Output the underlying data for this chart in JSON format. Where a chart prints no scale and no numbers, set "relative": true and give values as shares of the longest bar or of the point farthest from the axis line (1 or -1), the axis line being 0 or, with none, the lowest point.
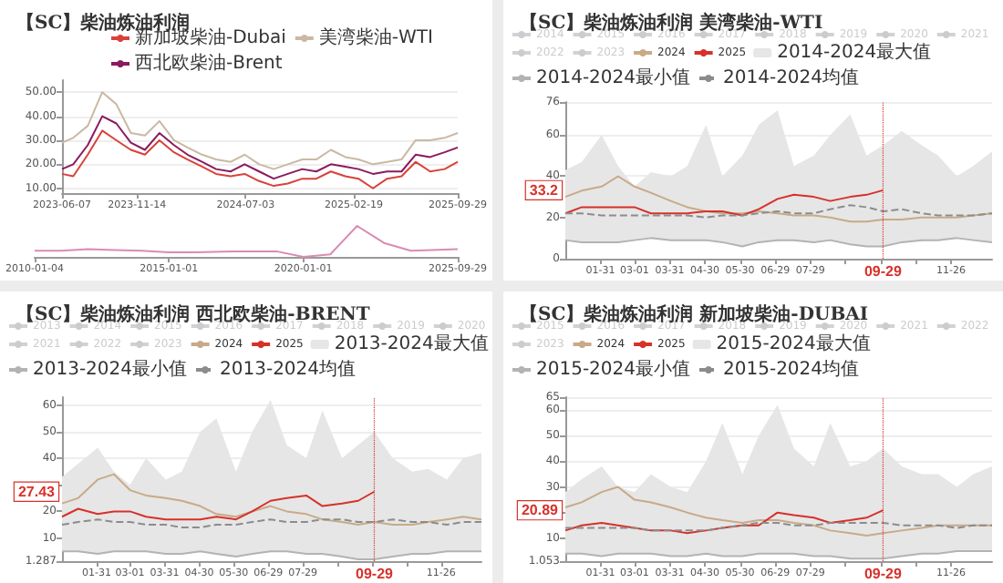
{
  "chart_data": [
    {
      "type": "line",
      "title": "【SC】柴油炼油利润",
      "legend": "top right",
      "grid": "y",
      "marker": "none",
      "x": [
        "2023-06-07",
        "2023-07-01",
        "2023-08-01",
        "2023-09-01",
        "2023-10-01",
        "2023-11-01",
        "2023-12-01",
        "2024-01-01",
        "2024-02-01",
        "2024-03-01",
        "2024-04-01",
        "2024-05-01",
        "2024-06-01",
        "2024-07-01",
        "2024-08-01",
        "2024-09-01",
        "2024-10-01",
        "2024-11-01",
        "2024-12-01",
        "2025-01-01",
        "2025-02-01",
        "2025-03-01",
        "2025-04-01",
        "2025-05-01",
        "2025-06-01",
        "2025-07-01",
        "2025-08-01",
        "2025-09-01",
        "2025-09-29"
      ],
      "xlim": [
        "2023-06-07",
        "2025-09-29"
      ],
      "xticks": [
        "2023-06-07",
        "2023-11-14",
        "2024-07-03",
        "2025-02-19",
        "2025-09-29"
      ],
      "ylim": [
        8,
        55
      ],
      "yticks": [
        {
          "value": 10,
          "label": "10.00"
        },
        {
          "value": 20,
          "label": "20.00"
        },
        {
          "value": 30,
          "label": "30.00"
        },
        {
          "value": 40,
          "label": "40.00"
        },
        {
          "value": 50,
          "label": "50.00"
        }
      ],
      "series": [
        {
          "name": "新加坡柴油-Dubai",
          "color": "#d9413b",
          "values": [
            16,
            15,
            24,
            34,
            30,
            26,
            24,
            30,
            25,
            22,
            19,
            16,
            15,
            16,
            13,
            11,
            12,
            14,
            14,
            17,
            15,
            14,
            10,
            14,
            15,
            21,
            17,
            18,
            21
          ]
        },
        {
          "name": "美湾柴油-WTI",
          "color": "#c9b9a3",
          "values": [
            29,
            31,
            36,
            50,
            45,
            33,
            32,
            38,
            30,
            27,
            24,
            22,
            21,
            24,
            20,
            18,
            20,
            22,
            22,
            26,
            23,
            22,
            20,
            21,
            22,
            30,
            30,
            31,
            33
          ]
        },
        {
          "name": "西北欧柴油-Brent",
          "color": "#8b1a5e",
          "values": [
            18,
            20,
            28,
            40,
            37,
            29,
            26,
            33,
            28,
            24,
            21,
            18,
            17,
            20,
            17,
            14,
            16,
            18,
            17,
            20,
            19,
            18,
            16,
            17,
            17,
            24,
            23,
            25,
            27
          ]
        }
      ]
    },
    {
      "type": "line",
      "relative": true,
      "tick_labels": "x",
      "marker": "none",
      "color": "#d98cb3",
      "x": [
        "2010-01-04",
        "2011-01-01",
        "2012-01-01",
        "2013-01-01",
        "2014-01-01",
        "2015-01-01",
        "2016-01-01",
        "2017-01-01",
        "2018-01-01",
        "2019-01-01",
        "2020-01-01",
        "2021-01-01",
        "2022-01-01",
        "2023-01-01",
        "2024-01-01",
        "2025-09-29"
      ],
      "xlim": [
        "2010-01-04",
        "2025-09-29"
      ],
      "xticks": [
        "2010-01-04",
        "2015-01-01",
        "2020-01-01",
        "2025-09-29"
      ],
      "values": [
        0.2,
        0.2,
        0.25,
        0.22,
        0.2,
        0.15,
        0.15,
        0.17,
        0.18,
        0.18,
        0,
        0.08,
        1,
        0.45,
        0.2,
        0.25
      ]
    },
    {
      "type": "line",
      "title": "【SC】柴油炼油利润 美湾柴油-WTI",
      "legend": "top",
      "grid": "y",
      "marker": "none",
      "x": [
        "--01-01",
        "--01-15",
        "--02-01",
        "--02-15",
        "--03-01",
        "--03-15",
        "--04-01",
        "--04-15",
        "--05-01",
        "--05-15",
        "--06-01",
        "--06-15",
        "--07-01",
        "--07-15",
        "--08-01",
        "--08-15",
        "--09-01",
        "--09-15",
        "--09-29",
        "--10-15",
        "--11-01",
        "--11-15",
        "--12-01",
        "--12-15",
        "--12-31"
      ],
      "xlim": [
        "--01-01",
        "--12-31"
      ],
      "xticks": [
        {
          "value": "--01-31",
          "label": "01-31"
        },
        {
          "value": "--03-01",
          "label": "03-01"
        },
        {
          "value": "--03-31",
          "label": "03-31"
        },
        {
          "value": "--04-30",
          "label": "04-30"
        },
        {
          "value": "--05-30",
          "label": "05-30"
        },
        {
          "value": "--06-29",
          "label": "06-29"
        },
        {
          "value": "--07-29",
          "label": "07-29"
        },
        {
          "value": "--08-28",
          "label": null
        },
        {
          "value": "--09-27",
          "label": null
        },
        {
          "value": "--10-27",
          "label": null
        },
        {
          "value": "--11-26",
          "label": "11-26"
        }
      ],
      "ylim": [
        0,
        76
      ],
      "yticks": [
        0,
        20,
        40,
        60,
        76
      ],
      "annotations": [
        {
          "text": "33.2",
          "y": 33.2
        }
      ],
      "ref_lines": [
        {
          "axis": "x",
          "value": "--09-29",
          "label": "09-29",
          "color": "#d7312a",
          "line_style": "dotted"
        }
      ],
      "series": [
        {
          "name": "2014",
          "color": "#cccccc",
          "values": [
            null,
            null,
            null,
            null,
            null,
            null,
            null,
            null,
            null,
            null,
            null,
            null,
            null,
            null,
            null,
            null,
            null,
            null,
            null,
            null,
            null,
            null,
            null,
            null,
            null
          ]
        },
        {
          "name": "2015",
          "color": "#cccccc",
          "values": [
            null,
            null,
            null,
            null,
            null,
            null,
            null,
            null,
            null,
            null,
            null,
            null,
            null,
            null,
            null,
            null,
            null,
            null,
            null,
            null,
            null,
            null,
            null,
            null,
            null
          ]
        },
        {
          "name": "2016",
          "color": "#cccccc",
          "values": [
            null,
            null,
            null,
            null,
            null,
            null,
            null,
            null,
            null,
            null,
            null,
            null,
            null,
            null,
            null,
            null,
            null,
            null,
            null,
            null,
            null,
            null,
            null,
            null,
            null
          ]
        },
        {
          "name": "2017",
          "color": "#cccccc",
          "values": [
            null,
            null,
            null,
            null,
            null,
            null,
            null,
            null,
            null,
            null,
            null,
            null,
            null,
            null,
            null,
            null,
            null,
            null,
            null,
            null,
            null,
            null,
            null,
            null,
            null
          ]
        },
        {
          "name": "2018",
          "color": "#cccccc",
          "values": [
            null,
            null,
            null,
            null,
            null,
            null,
            null,
            null,
            null,
            null,
            null,
            null,
            null,
            null,
            null,
            null,
            null,
            null,
            null,
            null,
            null,
            null,
            null,
            null,
            null
          ]
        },
        {
          "name": "2019",
          "color": "#cccccc",
          "values": [
            null,
            null,
            null,
            null,
            null,
            null,
            null,
            null,
            null,
            null,
            null,
            null,
            null,
            null,
            null,
            null,
            null,
            null,
            null,
            null,
            null,
            null,
            null,
            null,
            null
          ]
        },
        {
          "name": "2020",
          "color": "#cccccc",
          "values": [
            null,
            null,
            null,
            null,
            null,
            null,
            null,
            null,
            null,
            null,
            null,
            null,
            null,
            null,
            null,
            null,
            null,
            null,
            null,
            null,
            null,
            null,
            null,
            null,
            null
          ]
        },
        {
          "name": "2021",
          "color": "#cccccc",
          "values": [
            null,
            null,
            null,
            null,
            null,
            null,
            null,
            null,
            null,
            null,
            null,
            null,
            null,
            null,
            null,
            null,
            null,
            null,
            null,
            null,
            null,
            null,
            null,
            null,
            null
          ]
        },
        {
          "name": "2022",
          "color": "#cccccc",
          "values": [
            null,
            null,
            null,
            null,
            null,
            null,
            null,
            null,
            null,
            null,
            null,
            null,
            null,
            null,
            null,
            null,
            null,
            null,
            null,
            null,
            null,
            null,
            null,
            null,
            null
          ]
        },
        {
          "name": "2023",
          "color": "#cccccc",
          "values": [
            null,
            null,
            null,
            null,
            null,
            null,
            null,
            null,
            null,
            null,
            null,
            null,
            null,
            null,
            null,
            null,
            null,
            null,
            null,
            null,
            null,
            null,
            null,
            null,
            null
          ]
        },
        {
          "name": "2024",
          "color": "#c8aa88",
          "values": [
            30,
            33,
            35,
            40,
            35,
            32,
            28,
            25,
            23,
            22,
            22,
            23,
            22,
            21,
            21,
            20,
            18,
            18,
            19,
            19,
            20,
            20,
            20,
            21,
            22
          ]
        },
        {
          "name": "2025",
          "color": "#d7312a",
          "values": [
            22,
            25,
            25,
            25,
            25,
            22,
            22,
            22,
            23,
            23,
            21,
            24,
            29,
            31,
            30,
            28,
            30,
            31,
            33.2,
            null,
            null,
            null,
            null,
            null,
            null
          ]
        },
        {
          "name": "2014-2024最大值",
          "type": "area",
          "color": "#e6e6e6",
          "values": [
            43,
            47,
            60,
            45,
            35,
            42,
            40,
            45,
            65,
            40,
            50,
            65,
            72,
            45,
            50,
            60,
            70,
            50,
            55,
            62,
            55,
            50,
            40,
            45,
            52
          ]
        },
        {
          "name": "2014-2024最小值",
          "color": "#b3b3b3",
          "values": [
            9,
            8,
            8,
            8,
            9,
            10,
            9,
            9,
            9,
            8,
            6,
            8,
            9,
            9,
            8,
            9,
            7,
            6,
            6,
            8,
            9,
            9,
            10,
            9,
            8
          ]
        },
        {
          "name": "2014-2024均值",
          "color": "#8c8c8c",
          "line_style": "dashed",
          "values": [
            22,
            22,
            21,
            21,
            21,
            21,
            21,
            21,
            20,
            21,
            21,
            22,
            23,
            22,
            22,
            24,
            26,
            25,
            23,
            24,
            22,
            21,
            21,
            21,
            22
          ]
        }
      ]
    },
    {
      "type": "line",
      "title": "【SC】柴油炼油利润 西北欧柴油-BRENT",
      "legend": "top",
      "grid": "y",
      "marker": "none",
      "x": [
        "--01-01",
        "--01-15",
        "--02-01",
        "--02-15",
        "--03-01",
        "--03-15",
        "--04-01",
        "--04-15",
        "--05-01",
        "--05-15",
        "--06-01",
        "--06-15",
        "--07-01",
        "--07-15",
        "--08-01",
        "--08-15",
        "--09-01",
        "--09-15",
        "--09-29",
        "--10-15",
        "--11-01",
        "--11-15",
        "--12-01",
        "--12-15",
        "--12-31"
      ],
      "xlim": [
        "--01-01",
        "--12-31"
      ],
      "xticks": [
        {
          "value": "--01-31",
          "label": "01-31"
        },
        {
          "value": "--03-01",
          "label": "03-01"
        },
        {
          "value": "--03-31",
          "label": "03-31"
        },
        {
          "value": "--04-30",
          "label": "04-30"
        },
        {
          "value": "--05-30",
          "label": "05-30"
        },
        {
          "value": "--06-29",
          "label": "06-29"
        },
        {
          "value": "--07-29",
          "label": "07-29"
        },
        {
          "value": "--08-28",
          "label": null
        },
        {
          "value": "--09-27",
          "label": null
        },
        {
          "value": "--10-27",
          "label": null
        },
        {
          "value": "--11-26",
          "label": "11-26"
        }
      ],
      "ylim": [
        1.287,
        63
      ],
      "yticks": [
        1.287,
        10,
        20,
        {
          "value": 30,
          "label": null
        },
        40,
        50,
        60
      ],
      "annotations": [
        {
          "text": "27.43",
          "y": 27.43
        }
      ],
      "ref_lines": [
        {
          "axis": "x",
          "value": "--09-29",
          "label": "09-29",
          "color": "#d7312a",
          "line_style": "dotted"
        }
      ],
      "series": [
        {
          "name": "2013",
          "color": "#cccccc",
          "values": [
            null,
            null,
            null,
            null,
            null,
            null,
            null,
            null,
            null,
            null,
            null,
            null,
            null,
            null,
            null,
            null,
            null,
            null,
            null,
            null,
            null,
            null,
            null,
            null,
            null
          ]
        },
        {
          "name": "2014",
          "color": "#cccccc",
          "values": [
            null,
            null,
            null,
            null,
            null,
            null,
            null,
            null,
            null,
            null,
            null,
            null,
            null,
            null,
            null,
            null,
            null,
            null,
            null,
            null,
            null,
            null,
            null,
            null,
            null
          ]
        },
        {
          "name": "2015",
          "color": "#cccccc",
          "values": [
            null,
            null,
            null,
            null,
            null,
            null,
            null,
            null,
            null,
            null,
            null,
            null,
            null,
            null,
            null,
            null,
            null,
            null,
            null,
            null,
            null,
            null,
            null,
            null,
            null
          ]
        },
        {
          "name": "2016",
          "color": "#cccccc",
          "values": [
            null,
            null,
            null,
            null,
            null,
            null,
            null,
            null,
            null,
            null,
            null,
            null,
            null,
            null,
            null,
            null,
            null,
            null,
            null,
            null,
            null,
            null,
            null,
            null,
            null
          ]
        },
        {
          "name": "2017",
          "color": "#cccccc",
          "values": [
            null,
            null,
            null,
            null,
            null,
            null,
            null,
            null,
            null,
            null,
            null,
            null,
            null,
            null,
            null,
            null,
            null,
            null,
            null,
            null,
            null,
            null,
            null,
            null,
            null
          ]
        },
        {
          "name": "2018",
          "color": "#cccccc",
          "values": [
            null,
            null,
            null,
            null,
            null,
            null,
            null,
            null,
            null,
            null,
            null,
            null,
            null,
            null,
            null,
            null,
            null,
            null,
            null,
            null,
            null,
            null,
            null,
            null,
            null
          ]
        },
        {
          "name": "2019",
          "color": "#cccccc",
          "values": [
            null,
            null,
            null,
            null,
            null,
            null,
            null,
            null,
            null,
            null,
            null,
            null,
            null,
            null,
            null,
            null,
            null,
            null,
            null,
            null,
            null,
            null,
            null,
            null,
            null
          ]
        },
        {
          "name": "2020",
          "color": "#cccccc",
          "values": [
            null,
            null,
            null,
            null,
            null,
            null,
            null,
            null,
            null,
            null,
            null,
            null,
            null,
            null,
            null,
            null,
            null,
            null,
            null,
            null,
            null,
            null,
            null,
            null,
            null
          ]
        },
        {
          "name": "2021",
          "color": "#cccccc",
          "values": [
            null,
            null,
            null,
            null,
            null,
            null,
            null,
            null,
            null,
            null,
            null,
            null,
            null,
            null,
            null,
            null,
            null,
            null,
            null,
            null,
            null,
            null,
            null,
            null,
            null
          ]
        },
        {
          "name": "2022",
          "color": "#cccccc",
          "values": [
            null,
            null,
            null,
            null,
            null,
            null,
            null,
            null,
            null,
            null,
            null,
            null,
            null,
            null,
            null,
            null,
            null,
            null,
            null,
            null,
            null,
            null,
            null,
            null,
            null
          ]
        },
        {
          "name": "2023",
          "color": "#cccccc",
          "values": [
            null,
            null,
            null,
            null,
            null,
            null,
            null,
            null,
            null,
            null,
            null,
            null,
            null,
            null,
            null,
            null,
            null,
            null,
            null,
            null,
            null,
            null,
            null,
            null,
            null
          ]
        },
        {
          "name": "2024",
          "color": "#c8aa88",
          "values": [
            23,
            25,
            32,
            34,
            28,
            26,
            25,
            24,
            22,
            19,
            18,
            20,
            22,
            20,
            19,
            17,
            16,
            15,
            16,
            15,
            15,
            16,
            17,
            18,
            17
          ]
        },
        {
          "name": "2025",
          "color": "#d7312a",
          "values": [
            18,
            21,
            19,
            20,
            20,
            18,
            17,
            17,
            17,
            18,
            17,
            20,
            24,
            25,
            26,
            22,
            23,
            24,
            27.43,
            null,
            null,
            null,
            null,
            null,
            null
          ]
        },
        {
          "name": "2013-2024最大值",
          "type": "area",
          "color": "#e6e6e6",
          "values": [
            33,
            38,
            44,
            35,
            30,
            40,
            32,
            35,
            50,
            55,
            35,
            50,
            62,
            45,
            40,
            58,
            40,
            45,
            50,
            40,
            35,
            36,
            32,
            40,
            42
          ]
        },
        {
          "name": "2013-2024最小值",
          "color": "#b3b3b3",
          "values": [
            5,
            5,
            4,
            5,
            5,
            5,
            4,
            4,
            5,
            4,
            3,
            4,
            5,
            5,
            4,
            4,
            3,
            2,
            2,
            3,
            4,
            4,
            5,
            5,
            5
          ]
        },
        {
          "name": "2013-2024均值",
          "color": "#8c8c8c",
          "line_style": "dashed",
          "values": [
            15,
            16,
            17,
            16,
            16,
            15,
            15,
            14,
            14,
            15,
            15,
            16,
            17,
            16,
            16,
            17,
            17,
            16,
            16,
            17,
            16,
            16,
            15,
            16,
            16
          ]
        }
      ]
    },
    {
      "type": "line",
      "title": "【SC】柴油炼油利润 新加坡柴油-DUBAI",
      "legend": "top",
      "grid": "y",
      "marker": "none",
      "x": [
        "--01-01",
        "--01-15",
        "--02-01",
        "--02-15",
        "--03-01",
        "--03-15",
        "--04-01",
        "--04-15",
        "--05-01",
        "--05-15",
        "--06-01",
        "--06-15",
        "--07-01",
        "--07-15",
        "--08-01",
        "--08-15",
        "--09-01",
        "--09-15",
        "--09-29",
        "--10-15",
        "--11-01",
        "--11-15",
        "--12-01",
        "--12-15",
        "--12-31"
      ],
      "xlim": [
        "--01-01",
        "--12-31"
      ],
      "xticks": [
        {
          "value": "--01-31",
          "label": "01-31"
        },
        {
          "value": "--03-01",
          "label": "03-01"
        },
        {
          "value": "--03-31",
          "label": "03-31"
        },
        {
          "value": "--04-30",
          "label": "04-30"
        },
        {
          "value": "--05-30",
          "label": "05-30"
        },
        {
          "value": "--06-29",
          "label": "06-29"
        },
        {
          "value": "--07-29",
          "label": "07-29"
        },
        {
          "value": "--08-28",
          "label": null
        },
        {
          "value": "--09-27",
          "label": null
        },
        {
          "value": "--10-27",
          "label": null
        },
        {
          "value": "--11-26",
          "label": "11-26"
        }
      ],
      "ylim": [
        1.053,
        65
      ],
      "yticks": [
        1.053,
        10,
        {
          "value": 20,
          "label": null
        },
        30,
        40,
        50,
        60,
        65
      ],
      "annotations": [
        {
          "text": "20.89",
          "y": 20.89
        }
      ],
      "ref_lines": [
        {
          "axis": "x",
          "value": "--09-29",
          "label": "09-29",
          "color": "#d7312a",
          "line_style": "dotted"
        }
      ],
      "series": [
        {
          "name": "2015",
          "color": "#cccccc",
          "values": [
            null,
            null,
            null,
            null,
            null,
            null,
            null,
            null,
            null,
            null,
            null,
            null,
            null,
            null,
            null,
            null,
            null,
            null,
            null,
            null,
            null,
            null,
            null,
            null,
            null
          ]
        },
        {
          "name": "2016",
          "color": "#cccccc",
          "values": [
            null,
            null,
            null,
            null,
            null,
            null,
            null,
            null,
            null,
            null,
            null,
            null,
            null,
            null,
            null,
            null,
            null,
            null,
            null,
            null,
            null,
            null,
            null,
            null,
            null
          ]
        },
        {
          "name": "2017",
          "color": "#cccccc",
          "values": [
            null,
            null,
            null,
            null,
            null,
            null,
            null,
            null,
            null,
            null,
            null,
            null,
            null,
            null,
            null,
            null,
            null,
            null,
            null,
            null,
            null,
            null,
            null,
            null,
            null
          ]
        },
        {
          "name": "2018",
          "color": "#cccccc",
          "values": [
            null,
            null,
            null,
            null,
            null,
            null,
            null,
            null,
            null,
            null,
            null,
            null,
            null,
            null,
            null,
            null,
            null,
            null,
            null,
            null,
            null,
            null,
            null,
            null,
            null
          ]
        },
        {
          "name": "2019",
          "color": "#cccccc",
          "values": [
            null,
            null,
            null,
            null,
            null,
            null,
            null,
            null,
            null,
            null,
            null,
            null,
            null,
            null,
            null,
            null,
            null,
            null,
            null,
            null,
            null,
            null,
            null,
            null,
            null
          ]
        },
        {
          "name": "2020",
          "color": "#cccccc",
          "values": [
            null,
            null,
            null,
            null,
            null,
            null,
            null,
            null,
            null,
            null,
            null,
            null,
            null,
            null,
            null,
            null,
            null,
            null,
            null,
            null,
            null,
            null,
            null,
            null,
            null
          ]
        },
        {
          "name": "2021",
          "color": "#cccccc",
          "values": [
            null,
            null,
            null,
            null,
            null,
            null,
            null,
            null,
            null,
            null,
            null,
            null,
            null,
            null,
            null,
            null,
            null,
            null,
            null,
            null,
            null,
            null,
            null,
            null,
            null
          ]
        },
        {
          "name": "2022",
          "color": "#cccccc",
          "values": [
            null,
            null,
            null,
            null,
            null,
            null,
            null,
            null,
            null,
            null,
            null,
            null,
            null,
            null,
            null,
            null,
            null,
            null,
            null,
            null,
            null,
            null,
            null,
            null,
            null
          ]
        },
        {
          "name": "2023",
          "color": "#cccccc",
          "values": [
            null,
            null,
            null,
            null,
            null,
            null,
            null,
            null,
            null,
            null,
            null,
            null,
            null,
            null,
            null,
            null,
            null,
            null,
            null,
            null,
            null,
            null,
            null,
            null,
            null
          ]
        },
        {
          "name": "2024",
          "color": "#c8aa88",
          "values": [
            22,
            24,
            28,
            30,
            25,
            24,
            22,
            20,
            18,
            17,
            16,
            17,
            17,
            16,
            15,
            13,
            12,
            11,
            12,
            13,
            14,
            15,
            15,
            15,
            15
          ]
        },
        {
          "name": "2025",
          "color": "#d7312a",
          "values": [
            13,
            15,
            16,
            15,
            14,
            13,
            13,
            12,
            13,
            14,
            15,
            15,
            20,
            19,
            18,
            16,
            17,
            18,
            20.89,
            null,
            null,
            null,
            null,
            null,
            null
          ]
        },
        {
          "name": "2015-2024最大值",
          "type": "area",
          "color": "#e6e6e6",
          "values": [
            28,
            33,
            38,
            30,
            28,
            35,
            30,
            28,
            40,
            55,
            35,
            50,
            62,
            45,
            38,
            55,
            38,
            40,
            45,
            38,
            35,
            35,
            30,
            35,
            38
          ]
        },
        {
          "name": "2015-2024最小值",
          "color": "#b3b3b3",
          "values": [
            4,
            4,
            3,
            4,
            4,
            4,
            3,
            3,
            4,
            3,
            3,
            4,
            4,
            4,
            3,
            3,
            2,
            2,
            2,
            3,
            4,
            4,
            5,
            5,
            5
          ]
        },
        {
          "name": "2015-2024均值",
          "color": "#8c8c8c",
          "line_style": "dashed",
          "values": [
            14,
            14,
            14,
            14,
            14,
            13,
            13,
            13,
            13,
            14,
            15,
            16,
            16,
            15,
            15,
            16,
            16,
            16,
            16,
            15,
            15,
            15,
            14,
            15,
            15
          ]
        }
      ]
    }
  ]
}
